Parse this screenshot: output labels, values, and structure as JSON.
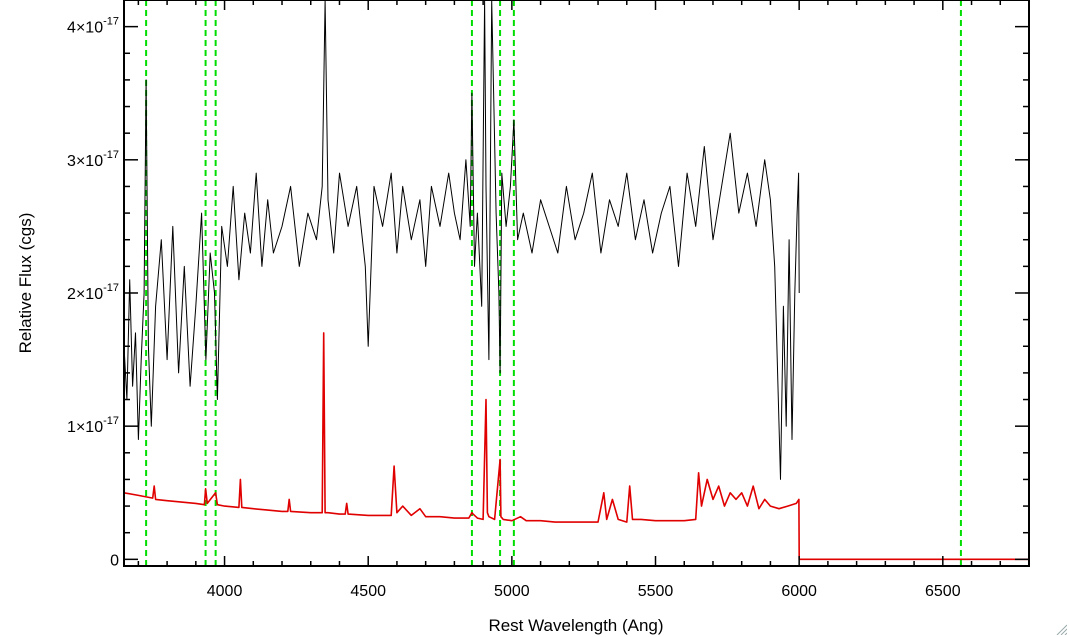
{
  "chart_data": {
    "type": "line",
    "title": "",
    "xlabel": "Rest Wavelength (Ang)",
    "ylabel": "Relative Flux (cgs)",
    "xlim": [
      3650,
      6800
    ],
    "ylim": [
      -0.05,
      4.2
    ],
    "y_scale_note": "10^-17",
    "x_ticks": [
      4000,
      4500,
      5000,
      5500,
      6000,
      6500
    ],
    "x_tick_labels": [
      "4000",
      "4500",
      "5000",
      "5500",
      "6000",
      "6500"
    ],
    "y_ticks": [
      {
        "value": 0,
        "mantissa": "0",
        "exp": ""
      },
      {
        "value": 1,
        "mantissa": "1×10",
        "exp": "-17"
      },
      {
        "value": 2,
        "mantissa": "2×10",
        "exp": "-17"
      },
      {
        "value": 3,
        "mantissa": "3×10",
        "exp": "-17"
      },
      {
        "value": 4,
        "mantissa": "4×10",
        "exp": "-17"
      }
    ],
    "grid": false,
    "colors": {
      "observed": "#000000",
      "model": "#e00000",
      "lines": "#00dd00"
    },
    "marker_lines_x": [
      3727,
      3934,
      3969,
      4861,
      4959,
      5007,
      6563
    ],
    "series": [
      {
        "color": "#000000",
        "x": [
          3650,
          3660,
          3670,
          3680,
          3690,
          3700,
          3710,
          3720,
          3727,
          3735,
          3745,
          3760,
          3780,
          3800,
          3820,
          3840,
          3860,
          3880,
          3900,
          3920,
          3935,
          3950,
          3965,
          3975,
          3990,
          4010,
          4030,
          4050,
          4070,
          4090,
          4110,
          4130,
          4150,
          4170,
          4200,
          4230,
          4260,
          4290,
          4320,
          4340,
          4350,
          4360,
          4380,
          4400,
          4430,
          4460,
          4490,
          4500,
          4520,
          4550,
          4580,
          4600,
          4620,
          4650,
          4680,
          4700,
          4720,
          4750,
          4780,
          4800,
          4820,
          4840,
          4855,
          4861,
          4870,
          4880,
          4895,
          4905,
          4910,
          4920,
          4930,
          4945,
          4955,
          4959,
          4965,
          4980,
          4995,
          5007,
          5020,
          5040,
          5070,
          5100,
          5130,
          5160,
          5190,
          5220,
          5250,
          5280,
          5310,
          5340,
          5370,
          5400,
          5430,
          5460,
          5490,
          5520,
          5550,
          5580,
          5610,
          5640,
          5670,
          5700,
          5730,
          5760,
          5790,
          5820,
          5850,
          5880,
          5900,
          5915,
          5925,
          5935,
          5945,
          5955,
          5965,
          5975,
          5985,
          5993,
          5998,
          6000
        ],
        "y": [
          1.6,
          1.2,
          2.1,
          1.3,
          1.7,
          0.9,
          1.5,
          2.0,
          3.6,
          1.6,
          1.0,
          1.9,
          2.4,
          1.5,
          2.5,
          1.4,
          2.2,
          1.3,
          1.9,
          2.6,
          1.5,
          2.3,
          2.0,
          1.2,
          2.5,
          2.2,
          2.8,
          2.1,
          2.6,
          2.3,
          2.9,
          2.2,
          2.7,
          2.3,
          2.5,
          2.8,
          2.2,
          2.6,
          2.4,
          2.8,
          4.2,
          2.7,
          2.3,
          2.9,
          2.5,
          2.8,
          2.2,
          1.6,
          2.8,
          2.5,
          2.9,
          2.3,
          2.8,
          2.4,
          2.7,
          2.2,
          2.8,
          2.5,
          2.9,
          2.6,
          2.4,
          3.0,
          2.5,
          3.5,
          2.2,
          2.6,
          1.9,
          4.2,
          2.8,
          1.5,
          4.2,
          2.6,
          2.0,
          1.4,
          2.9,
          2.5,
          2.8,
          3.3,
          2.4,
          2.6,
          2.3,
          2.7,
          2.5,
          2.3,
          2.8,
          2.4,
          2.6,
          2.9,
          2.3,
          2.7,
          2.5,
          2.9,
          2.4,
          2.7,
          2.3,
          2.6,
          2.8,
          2.2,
          2.9,
          2.5,
          3.1,
          2.4,
          2.8,
          3.2,
          2.6,
          2.9,
          2.5,
          3.0,
          2.7,
          2.2,
          1.4,
          0.6,
          1.9,
          1.0,
          2.4,
          0.9,
          2.0,
          2.6,
          2.9,
          2.0
        ]
      },
      {
        "color": "#e00000",
        "x": [
          3650,
          3700,
          3750,
          3755,
          3760,
          3800,
          3850,
          3900,
          3930,
          3934,
          3940,
          3969,
          3975,
          4000,
          4050,
          4055,
          4060,
          4100,
          4150,
          4200,
          4220,
          4225,
          4230,
          4300,
          4340,
          4345,
          4350,
          4360,
          4400,
          4420,
          4425,
          4430,
          4500,
          4550,
          4580,
          4590,
          4600,
          4620,
          4650,
          4680,
          4700,
          4750,
          4800,
          4850,
          4861,
          4865,
          4880,
          4900,
          4910,
          4915,
          4920,
          4940,
          4959,
          4962,
          4970,
          5000,
          5030,
          5050,
          5100,
          5150,
          5200,
          5250,
          5300,
          5320,
          5330,
          5350,
          5370,
          5400,
          5410,
          5420,
          5450,
          5500,
          5550,
          5600,
          5640,
          5650,
          5660,
          5680,
          5700,
          5720,
          5740,
          5760,
          5780,
          5800,
          5820,
          5840,
          5860,
          5880,
          5900,
          5930,
          5960,
          5990,
          5999,
          6000,
          6100,
          6200,
          6300,
          6400,
          6500,
          6600,
          6700,
          6800
        ],
        "y": [
          0.5,
          0.48,
          0.46,
          0.55,
          0.45,
          0.44,
          0.43,
          0.42,
          0.41,
          0.53,
          0.42,
          0.5,
          0.41,
          0.4,
          0.39,
          0.6,
          0.39,
          0.38,
          0.37,
          0.36,
          0.36,
          0.45,
          0.36,
          0.35,
          0.35,
          1.7,
          0.35,
          0.35,
          0.34,
          0.34,
          0.42,
          0.34,
          0.33,
          0.33,
          0.33,
          0.7,
          0.35,
          0.4,
          0.33,
          0.38,
          0.32,
          0.32,
          0.31,
          0.31,
          0.35,
          0.34,
          0.31,
          0.3,
          1.2,
          0.35,
          0.32,
          0.3,
          0.75,
          0.32,
          0.3,
          0.29,
          0.32,
          0.29,
          0.29,
          0.28,
          0.28,
          0.28,
          0.28,
          0.5,
          0.3,
          0.45,
          0.3,
          0.28,
          0.55,
          0.3,
          0.3,
          0.29,
          0.29,
          0.29,
          0.3,
          0.65,
          0.4,
          0.6,
          0.45,
          0.55,
          0.4,
          0.5,
          0.45,
          0.5,
          0.4,
          0.55,
          0.38,
          0.45,
          0.4,
          0.38,
          0.4,
          0.42,
          0.45,
          0.0,
          0.0,
          0.0,
          0.0,
          0.0,
          0.0,
          0.0,
          0.0,
          0.0
        ]
      }
    ]
  }
}
